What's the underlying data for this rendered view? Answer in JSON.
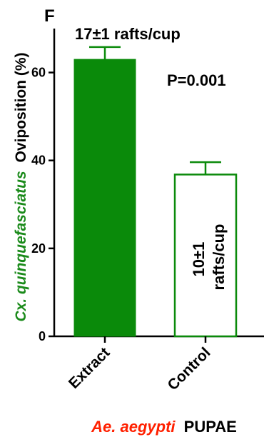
{
  "panel_letter": "F",
  "chart_data": {
    "type": "bar",
    "categories": [
      "Extract",
      "Control"
    ],
    "values": [
      63,
      36.8
    ],
    "errors": [
      2.8,
      2.8
    ],
    "bar_styles": [
      "filled",
      "outline"
    ],
    "ylim": [
      0,
      70
    ],
    "yticks": [
      "0",
      "20",
      "40",
      "60"
    ],
    "ytick_values": [
      0,
      20,
      40,
      60
    ],
    "ylabel": {
      "species": "Cx. quinquefasciatus",
      "measure": "Oviposition (%)"
    },
    "xlabel": {
      "species": "Ae. aegypti",
      "stage": "PUPAE"
    },
    "annotations": {
      "extract_rafts": "17±1 rafts/cup",
      "p_value": "P=0.001",
      "control_rafts_line1": "10±1",
      "control_rafts_line2": "rafts/cup"
    },
    "grid": false,
    "colors": {
      "bar": "#0a8a0a",
      "species_y": "#1a8a1a",
      "species_x": "#ff2000",
      "text": "#000000"
    }
  }
}
